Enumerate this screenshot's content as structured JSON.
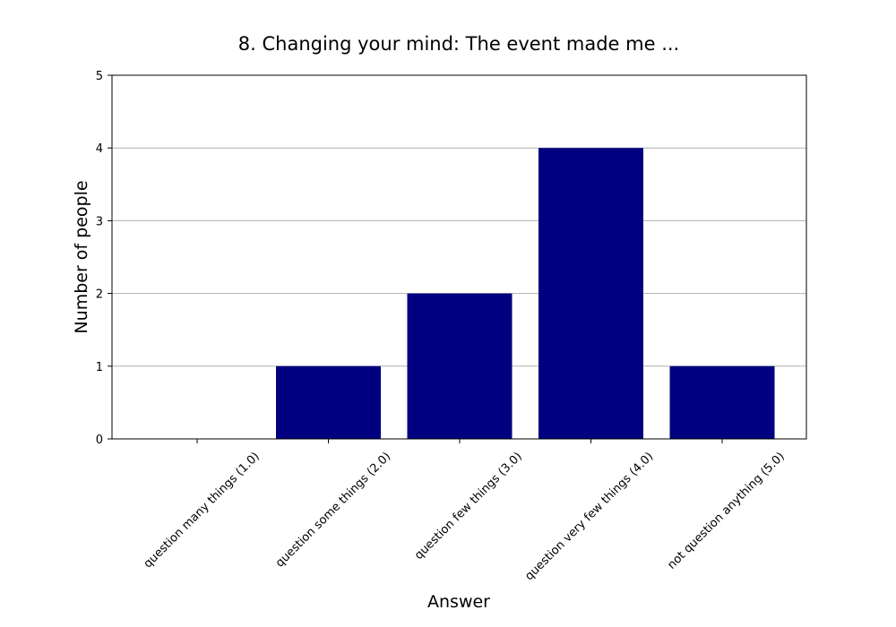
{
  "chart_data": {
    "type": "bar",
    "title": "8. Changing your mind: The event made me ...",
    "xlabel": "Answer",
    "ylabel": "Number of people",
    "categories": [
      "question many things (1.0)",
      "question some things (2.0)",
      "question few things (3.0)",
      "question very few things (4.0)",
      "not question anything (5.0)"
    ],
    "values": [
      0,
      1,
      2,
      4,
      1
    ],
    "ylim": [
      0,
      5
    ],
    "yticks": [
      0,
      1,
      2,
      3,
      4,
      5
    ],
    "grid": "horizontal",
    "bar_color": "#000080",
    "grid_color": "#b0b0b0",
    "axis_color": "#000000"
  }
}
